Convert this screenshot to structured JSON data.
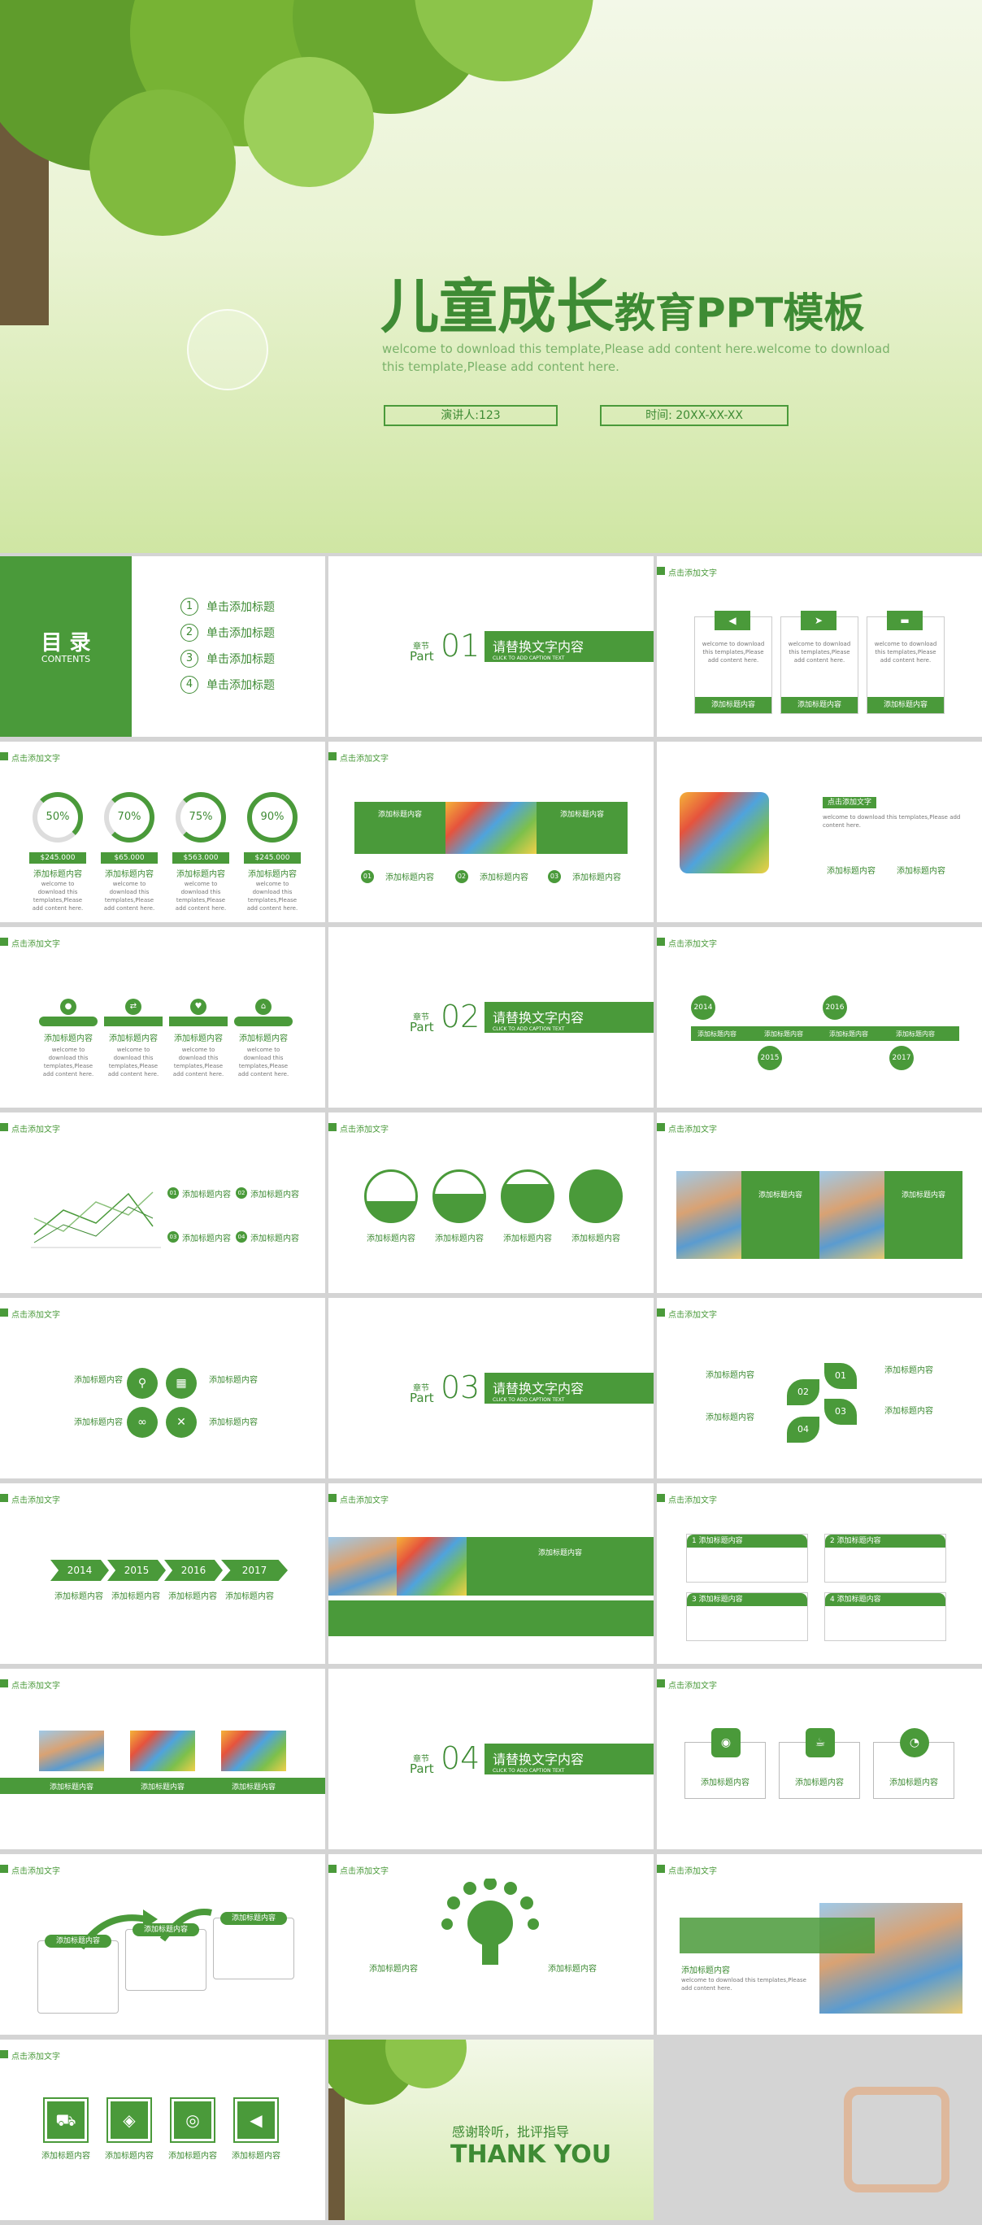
{
  "hero": {
    "title_main": "儿童成长",
    "title_sub": "教育PPT模板",
    "desc": "welcome to download this template,Please add content here.welcome to download this template,Please add content here.",
    "speaker": "演讲人:123",
    "time": "时间: 20XX-XX-XX"
  },
  "toc": {
    "title": "目 录",
    "subtitle": "CONTENTS",
    "items": [
      {
        "num": "1",
        "label": "单击添加标题"
      },
      {
        "num": "2",
        "label": "单击添加标题"
      },
      {
        "num": "3",
        "label": "单击添加标题"
      },
      {
        "num": "4",
        "label": "单击添加标题"
      }
    ]
  },
  "common": {
    "tag": "点击添加文字",
    "heading": "添加标题内容",
    "body": "welcome to download this templates,Please add content here.",
    "part_label_cn": "章节",
    "part_label_en": "Part",
    "part_title": "请替换文字内容",
    "part_sub": "CLICK TO ADD CAPTION TEXT"
  },
  "parts": [
    "01",
    "02",
    "03",
    "04"
  ],
  "progress": {
    "values": [
      "50%",
      "70%",
      "75%",
      "90%"
    ],
    "amounts": [
      "$245.000",
      "$65.000",
      "$563.000",
      "$245.000"
    ]
  },
  "years": {
    "timeline_a": [
      "2014",
      "2016",
      "2015",
      "2017"
    ],
    "arrows": [
      "2014",
      "2015",
      "2016",
      "2017"
    ]
  },
  "leaf_nums": [
    "01",
    "02",
    "03",
    "04"
  ],
  "numbered": [
    "1",
    "2",
    "3",
    "4"
  ],
  "thanks": {
    "cn": "感谢聆听，批评指导",
    "en": "THANK YOU"
  },
  "colors": {
    "primary": "#4a9a3a",
    "dark": "#3e8b34",
    "light": "#e9f3d2"
  }
}
